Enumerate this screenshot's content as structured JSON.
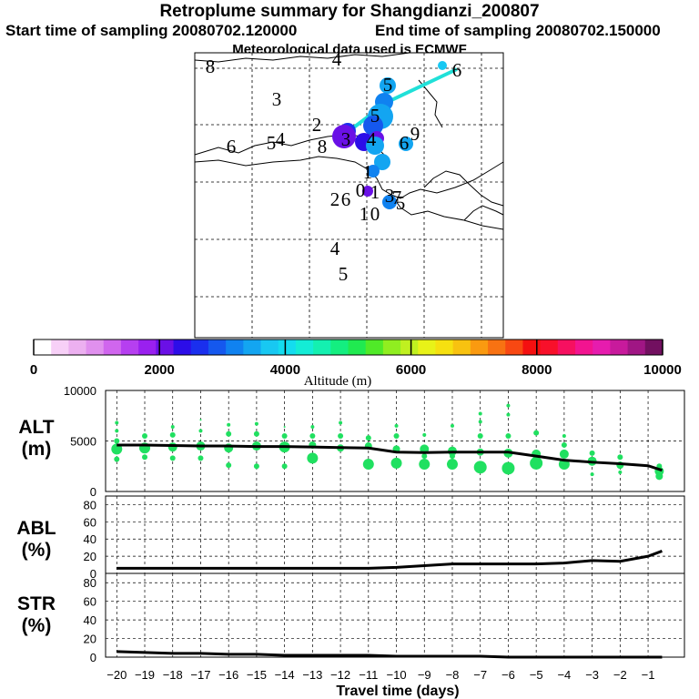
{
  "title": "Retroplume summary for Shangdianzi_200807",
  "start_label": "Start time of sampling 20080702.120000",
  "end_label": "End time of sampling 20080702.150000",
  "met_label": "Meteorological data used is ECMWF",
  "colorbar": {
    "label": "Altitude (m)",
    "ticks": [
      0,
      2000,
      4000,
      6000,
      8000,
      10000
    ],
    "tick_labels": [
      "0",
      "2000",
      "4000",
      "6000",
      "8000",
      "10000"
    ],
    "colors": [
      "#ffffff",
      "#f7d0f7",
      "#ecb0f0",
      "#e090ee",
      "#d066ee",
      "#b63ff0",
      "#9a20ef",
      "#6a10e6",
      "#2c0de8",
      "#1a2fee",
      "#1558ee",
      "#1082f0",
      "#13a5f1",
      "#18c8f2",
      "#14dcef",
      "#14ecd6",
      "#14f0b0",
      "#14ee80",
      "#20ea50",
      "#50ea28",
      "#90ee20",
      "#c0f020",
      "#e8f218",
      "#f6e010",
      "#f8c210",
      "#fa9a10",
      "#f87212",
      "#f84812",
      "#f41010",
      "#f8102a",
      "#f61060",
      "#f21490",
      "#e61cae",
      "#c81a9c",
      "#a01684",
      "#721060"
    ]
  },
  "map_labels": [
    {
      "t": "8"
    },
    {
      "t": "4"
    },
    {
      "t": "6"
    },
    {
      "t": "5"
    },
    {
      "t": "3"
    },
    {
      "t": "5"
    },
    {
      "t": "2"
    },
    {
      "t": "6"
    },
    {
      "t": "5"
    },
    {
      "t": "4"
    },
    {
      "t": "8"
    },
    {
      "t": "3"
    },
    {
      "t": "4"
    },
    {
      "t": "9"
    },
    {
      "t": "6"
    },
    {
      "t": "1"
    },
    {
      "t": "2"
    },
    {
      "t": "6"
    },
    {
      "t": "0"
    },
    {
      "t": "1"
    },
    {
      "t": "3"
    },
    {
      "t": "7"
    },
    {
      "t": "5"
    },
    {
      "t": "1"
    },
    {
      "t": "0"
    },
    {
      "t": "4"
    },
    {
      "t": "5"
    }
  ],
  "panels": {
    "alt": {
      "label_top": "ALT",
      "label_bottom": "(m)"
    },
    "abl": {
      "label_top": "ABL",
      "label_bottom": "(%)"
    },
    "str": {
      "label_top": "STR",
      "label_bottom": "(%)"
    }
  },
  "xlabel": "Travel time (days)",
  "chart_data": {
    "type": "line",
    "x_label": "Travel time (days)",
    "x_ticks": [
      -20,
      -19,
      -18,
      -17,
      -16,
      -15,
      -14,
      -13,
      -12,
      -11,
      -10,
      -9,
      -8,
      -7,
      -6,
      -5,
      -4,
      -3,
      -2,
      -1
    ],
    "x_range": [
      -20.4,
      0.3
    ],
    "series": [
      {
        "name": "ALT",
        "ylabel": "ALT (m)",
        "ylim": [
          0,
          10000
        ],
        "yticks": [
          0,
          5000,
          10000
        ],
        "x": [
          -20,
          -19,
          -18,
          -17,
          -16,
          -15,
          -14,
          -13,
          -12,
          -11,
          -10,
          -9,
          -8,
          -7,
          -6,
          -5,
          -4,
          -3,
          -2,
          -1,
          -0.5
        ],
        "values": [
          4600,
          4600,
          4550,
          4500,
          4500,
          4450,
          4450,
          4400,
          4350,
          4300,
          3900,
          3850,
          3900,
          3900,
          3900,
          3500,
          3100,
          2900,
          2750,
          2550,
          2100
        ]
      },
      {
        "name": "ABL",
        "ylabel": "ABL (%)",
        "ylim": [
          0,
          90
        ],
        "yticks": [
          0,
          20,
          40,
          60,
          80
        ],
        "x": [
          -20,
          -19,
          -18,
          -17,
          -16,
          -15,
          -14,
          -13,
          -12,
          -11,
          -10,
          -9,
          -8,
          -7,
          -6,
          -5,
          -4,
          -3,
          -2,
          -1,
          -0.5
        ],
        "values": [
          6,
          6,
          6,
          6,
          6,
          6,
          6,
          6,
          6,
          6,
          7,
          9,
          11,
          11,
          11,
          11,
          12,
          15,
          14,
          20,
          26
        ]
      },
      {
        "name": "STR",
        "ylabel": "STR (%)",
        "ylim": [
          0,
          90
        ],
        "yticks": [
          0,
          20,
          40,
          60,
          80
        ],
        "x": [
          -20,
          -19,
          -18,
          -17,
          -16,
          -15,
          -14,
          -13,
          -12,
          -11,
          -10,
          -9,
          -8,
          -7,
          -6,
          -5,
          -4,
          -3,
          -2,
          -1,
          -0.5
        ],
        "values": [
          6,
          5,
          4,
          4,
          3,
          3,
          2,
          2,
          2,
          2,
          1,
          1,
          1,
          1,
          0,
          0,
          0,
          0,
          0,
          0,
          0
        ]
      }
    ],
    "alt_scatter": [
      {
        "x": -20,
        "y": 4200,
        "s": 6
      },
      {
        "x": -20,
        "y": 5000,
        "s": 3
      },
      {
        "x": -20,
        "y": 3200,
        "s": 3
      },
      {
        "x": -20,
        "y": 6000,
        "s": 2
      },
      {
        "x": -20,
        "y": 6800,
        "s": 2
      },
      {
        "x": -19,
        "y": 4300,
        "s": 6
      },
      {
        "x": -19,
        "y": 5500,
        "s": 3
      },
      {
        "x": -19,
        "y": 3400,
        "s": 3
      },
      {
        "x": -18,
        "y": 4400,
        "s": 5
      },
      {
        "x": -18,
        "y": 5600,
        "s": 3
      },
      {
        "x": -18,
        "y": 3300,
        "s": 3
      },
      {
        "x": -18,
        "y": 6400,
        "s": 2
      },
      {
        "x": -17,
        "y": 4500,
        "s": 5
      },
      {
        "x": -17,
        "y": 3300,
        "s": 3
      },
      {
        "x": -17,
        "y": 6000,
        "s": 2
      },
      {
        "x": -17,
        "y": 7100,
        "s": 1
      },
      {
        "x": -16,
        "y": 4300,
        "s": 5
      },
      {
        "x": -16,
        "y": 5700,
        "s": 3
      },
      {
        "x": -16,
        "y": 2600,
        "s": 3
      },
      {
        "x": -16,
        "y": 6600,
        "s": 2
      },
      {
        "x": -15,
        "y": 4500,
        "s": 5
      },
      {
        "x": -15,
        "y": 5700,
        "s": 3
      },
      {
        "x": -15,
        "y": 2500,
        "s": 3
      },
      {
        "x": -15,
        "y": 6700,
        "s": 2
      },
      {
        "x": -14,
        "y": 4400,
        "s": 6
      },
      {
        "x": -14,
        "y": 5500,
        "s": 3
      },
      {
        "x": -14,
        "y": 2500,
        "s": 3
      },
      {
        "x": -14,
        "y": 6400,
        "s": 1
      },
      {
        "x": -13,
        "y": 4600,
        "s": 4
      },
      {
        "x": -13,
        "y": 3300,
        "s": 6
      },
      {
        "x": -13,
        "y": 5500,
        "s": 3
      },
      {
        "x": -13,
        "y": 6400,
        "s": 2
      },
      {
        "x": -12,
        "y": 4300,
        "s": 4
      },
      {
        "x": -12,
        "y": 5500,
        "s": 3
      },
      {
        "x": -12,
        "y": 6800,
        "s": 2
      },
      {
        "x": -11,
        "y": 4500,
        "s": 4
      },
      {
        "x": -11,
        "y": 2700,
        "s": 6
      },
      {
        "x": -11,
        "y": 5300,
        "s": 3
      },
      {
        "x": -10,
        "y": 4200,
        "s": 4
      },
      {
        "x": -10,
        "y": 2800,
        "s": 6
      },
      {
        "x": -10,
        "y": 5500,
        "s": 3
      },
      {
        "x": -10,
        "y": 6500,
        "s": 2
      },
      {
        "x": -9,
        "y": 4200,
        "s": 5
      },
      {
        "x": -9,
        "y": 2700,
        "s": 6
      },
      {
        "x": -9,
        "y": 3500,
        "s": 3
      },
      {
        "x": -9,
        "y": 5600,
        "s": 2
      },
      {
        "x": -8,
        "y": 4000,
        "s": 5
      },
      {
        "x": -8,
        "y": 2700,
        "s": 6
      },
      {
        "x": -8,
        "y": 3500,
        "s": 3
      },
      {
        "x": -8,
        "y": 6500,
        "s": 2
      },
      {
        "x": -7,
        "y": 2400,
        "s": 7
      },
      {
        "x": -7,
        "y": 3900,
        "s": 4
      },
      {
        "x": -7,
        "y": 5500,
        "s": 3
      },
      {
        "x": -7,
        "y": 6900,
        "s": 2
      },
      {
        "x": -7,
        "y": 7700,
        "s": 2
      },
      {
        "x": -6,
        "y": 2300,
        "s": 7
      },
      {
        "x": -6,
        "y": 3800,
        "s": 5
      },
      {
        "x": -6,
        "y": 5500,
        "s": 3
      },
      {
        "x": -6,
        "y": 7600,
        "s": 2
      },
      {
        "x": -6,
        "y": 8500,
        "s": 2
      },
      {
        "x": -5,
        "y": 2800,
        "s": 7
      },
      {
        "x": -5,
        "y": 3700,
        "s": 5
      },
      {
        "x": -5,
        "y": 5800,
        "s": 3
      },
      {
        "x": -4,
        "y": 2700,
        "s": 6
      },
      {
        "x": -4,
        "y": 3700,
        "s": 5
      },
      {
        "x": -4,
        "y": 4600,
        "s": 3
      },
      {
        "x": -4,
        "y": 5500,
        "s": 2
      },
      {
        "x": -3,
        "y": 3000,
        "s": 5
      },
      {
        "x": -3,
        "y": 3800,
        "s": 3
      },
      {
        "x": -3,
        "y": 1700,
        "s": 2
      },
      {
        "x": -2,
        "y": 2600,
        "s": 4
      },
      {
        "x": -2,
        "y": 3400,
        "s": 3
      },
      {
        "x": -2,
        "y": 1900,
        "s": 2
      },
      {
        "x": -0.6,
        "y": 2000,
        "s": 5
      },
      {
        "x": -0.6,
        "y": 1500,
        "s": 4
      },
      {
        "x": -0.6,
        "y": 2500,
        "s": 3
      }
    ],
    "map_plume": [
      {
        "day": -20,
        "alt": 3800,
        "r": 5
      },
      {
        "day": -19,
        "alt": 3500,
        "r": 9
      },
      {
        "day": -18,
        "alt": 3100,
        "r": 10
      },
      {
        "day": -17,
        "alt": 3400,
        "r": 14
      },
      {
        "day": -16,
        "alt": 2800,
        "r": 11
      },
      {
        "day": -15,
        "alt": 2600,
        "r": 9
      },
      {
        "day": -14,
        "alt": 2100,
        "r": 13
      },
      {
        "day": -13,
        "alt": 2300,
        "r": 10
      },
      {
        "day": -12,
        "alt": 2200,
        "r": 8
      },
      {
        "day": -11,
        "alt": 3600,
        "r": 10
      },
      {
        "day": -10,
        "alt": 3400,
        "r": 8
      },
      {
        "day": -9,
        "alt": 3500,
        "r": 9
      },
      {
        "day": -8,
        "alt": 3200,
        "r": 7
      },
      {
        "day": -7,
        "alt": 2000,
        "r": 6
      },
      {
        "day": -6,
        "alt": 3100,
        "r": 8
      }
    ]
  }
}
